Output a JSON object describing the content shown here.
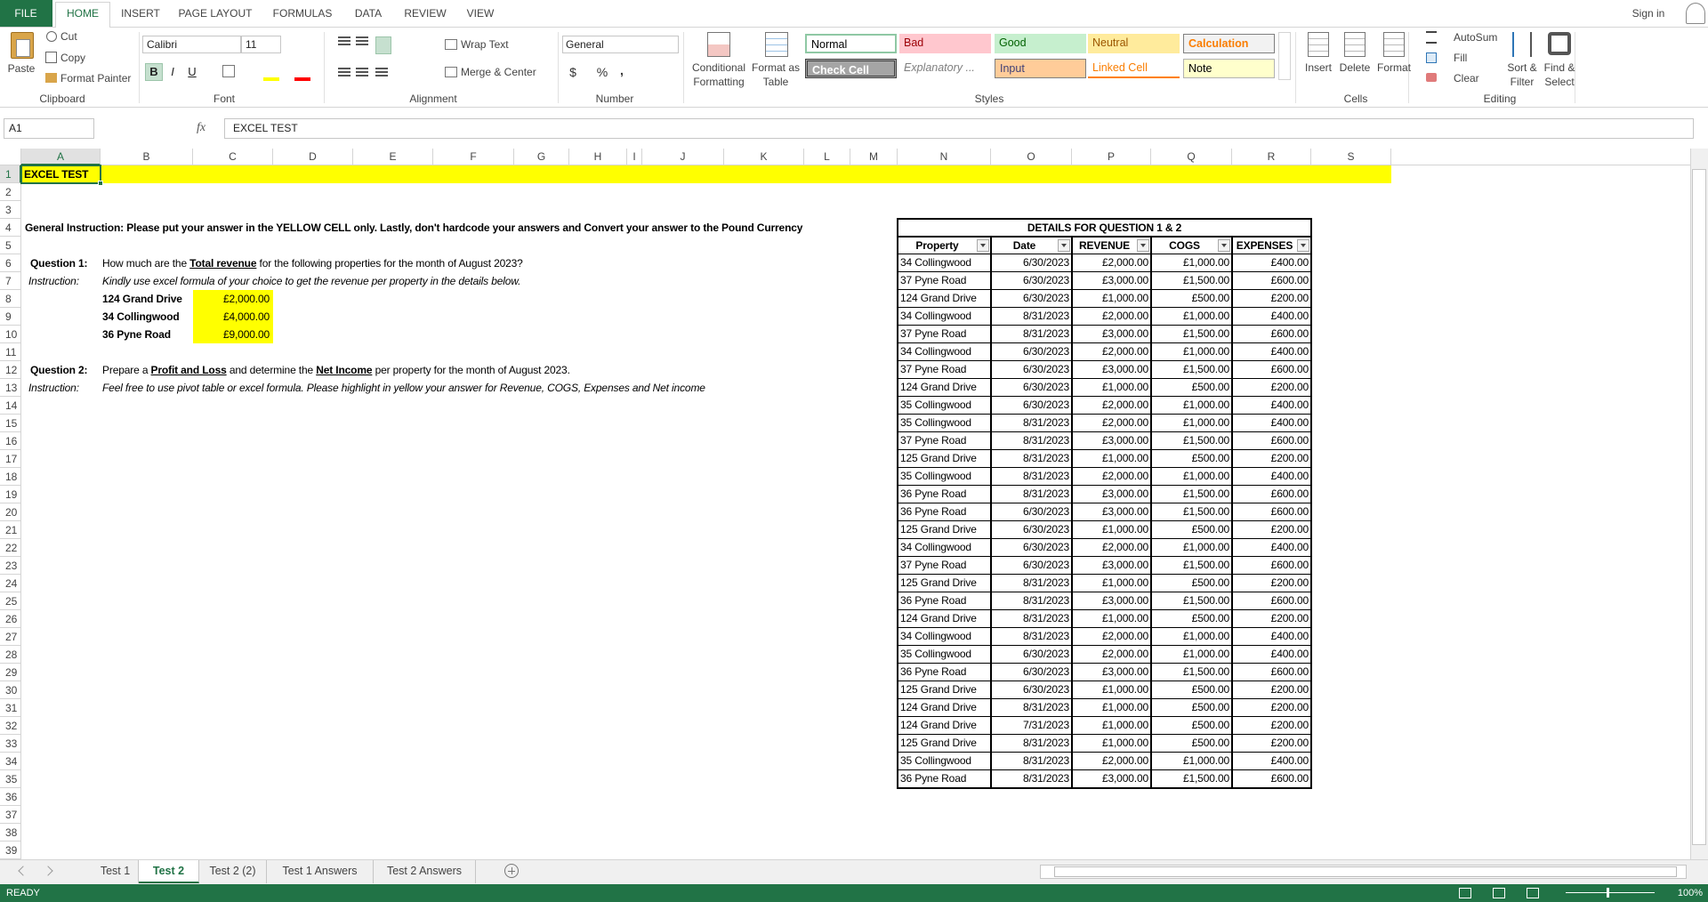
{
  "ribbon": {
    "tabs": [
      "FILE",
      "HOME",
      "INSERT",
      "PAGE LAYOUT",
      "FORMULAS",
      "DATA",
      "REVIEW",
      "VIEW"
    ],
    "sign_in": "Sign in",
    "clipboard": {
      "paste": "Paste",
      "cut": "Cut",
      "copy": "Copy",
      "format_painter": "Format Painter",
      "label": "Clipboard"
    },
    "font": {
      "name": "Calibri",
      "size": "11",
      "bold": "B",
      "italic": "I",
      "underline": "U",
      "label": "Font"
    },
    "alignment": {
      "wrap_text": "Wrap Text",
      "merge_center": "Merge & Center",
      "label": "Alignment"
    },
    "number": {
      "format": "General",
      "currency": "$",
      "percent": "%",
      "comma": ",",
      "label": "Number"
    },
    "styles": {
      "conditional_formatting": [
        "Conditional",
        "Formatting"
      ],
      "format_as_table": [
        "Format as",
        "Table"
      ],
      "cells": [
        [
          "Normal",
          "Bad",
          "Good",
          "Neutral",
          "Calculation"
        ],
        [
          "Check Cell",
          "Explanatory ...",
          "Input",
          "Linked Cell",
          "Note"
        ]
      ],
      "label": "Styles"
    },
    "cells": {
      "insert": "Insert",
      "delete": "Delete",
      "format": "Format",
      "label": "Cells"
    },
    "editing": {
      "autosum": "AutoSum",
      "fill": "Fill",
      "clear": "Clear",
      "sort_filter": [
        "Sort &",
        "Filter"
      ],
      "find_select": [
        "Find &",
        "Select"
      ],
      "label": "Editing"
    }
  },
  "formula_bar": {
    "name_box": "A1",
    "fx": "fx",
    "content": "EXCEL TEST"
  },
  "columns": [
    "A",
    "B",
    "C",
    "D",
    "E",
    "F",
    "G",
    "H",
    "I",
    "J",
    "K",
    "L",
    "M",
    "N",
    "O",
    "P",
    "Q",
    "R",
    "S"
  ],
  "row_numbers": [
    1,
    2,
    3,
    4,
    5,
    6,
    7,
    8,
    9,
    10,
    11,
    12,
    13,
    14,
    15,
    16,
    17,
    18,
    19,
    20,
    21,
    22,
    23,
    24,
    25,
    26,
    27,
    28,
    29,
    30,
    31,
    32,
    33,
    34,
    35,
    36,
    37,
    38,
    39
  ],
  "sheet": {
    "title": "EXCEL TEST",
    "general_instruction": "General Instruction: Please put your answer in the YELLOW CELL only. Lastly, don't hardcode your answers and Convert your answer to the Pound Currency",
    "question1": {
      "label": "Question 1:",
      "text": [
        "How much are the ",
        "Total revenue",
        " for the following properties for the month of August 2023?"
      ],
      "instruction_label": "Instruction:",
      "instruction": "Kindly use excel formula of your choice to get the revenue per property in the details below.",
      "answers": [
        [
          "124 Grand Drive",
          "£2,000.00"
        ],
        [
          "34 Collingwood",
          "£4,000.00"
        ],
        [
          "36 Pyne Road",
          "£9,000.00"
        ]
      ]
    },
    "question2": {
      "label": "Question 2:",
      "text": [
        "Prepare a ",
        "Profit and Loss",
        " and determine the ",
        "Net Income",
        " per property for the month of August 2023."
      ],
      "instruction_label": "Instruction:",
      "instruction": "Feel free to use pivot table or excel formula. Please highlight in yellow your answer for Revenue, COGS, Expenses and Net income"
    },
    "details": {
      "title": "DETAILS FOR QUESTION 1 & 2",
      "headers": [
        "Property",
        "Date",
        "REVENUE",
        "COGS",
        "EXPENSES"
      ],
      "rows": [
        [
          "34 Collingwood",
          "6/30/2023",
          "£2,000.00",
          "£1,000.00",
          "£400.00"
        ],
        [
          "37 Pyne Road",
          "6/30/2023",
          "£3,000.00",
          "£1,500.00",
          "£600.00"
        ],
        [
          "124 Grand Drive",
          "6/30/2023",
          "£1,000.00",
          "£500.00",
          "£200.00"
        ],
        [
          "34 Collingwood",
          "8/31/2023",
          "£2,000.00",
          "£1,000.00",
          "£400.00"
        ],
        [
          "37 Pyne Road",
          "8/31/2023",
          "£3,000.00",
          "£1,500.00",
          "£600.00"
        ],
        [
          "34 Collingwood",
          "6/30/2023",
          "£2,000.00",
          "£1,000.00",
          "£400.00"
        ],
        [
          "37 Pyne Road",
          "6/30/2023",
          "£3,000.00",
          "£1,500.00",
          "£600.00"
        ],
        [
          "124 Grand Drive",
          "6/30/2023",
          "£1,000.00",
          "£500.00",
          "£200.00"
        ],
        [
          "35 Collingwood",
          "6/30/2023",
          "£2,000.00",
          "£1,000.00",
          "£400.00"
        ],
        [
          "35 Collingwood",
          "8/31/2023",
          "£2,000.00",
          "£1,000.00",
          "£400.00"
        ],
        [
          "37 Pyne Road",
          "8/31/2023",
          "£3,000.00",
          "£1,500.00",
          "£600.00"
        ],
        [
          "125 Grand Drive",
          "8/31/2023",
          "£1,000.00",
          "£500.00",
          "£200.00"
        ],
        [
          "35 Collingwood",
          "8/31/2023",
          "£2,000.00",
          "£1,000.00",
          "£400.00"
        ],
        [
          "36 Pyne Road",
          "8/31/2023",
          "£3,000.00",
          "£1,500.00",
          "£600.00"
        ],
        [
          "36 Pyne Road",
          "6/30/2023",
          "£3,000.00",
          "£1,500.00",
          "£600.00"
        ],
        [
          "125 Grand Drive",
          "6/30/2023",
          "£1,000.00",
          "£500.00",
          "£200.00"
        ],
        [
          "34 Collingwood",
          "6/30/2023",
          "£2,000.00",
          "£1,000.00",
          "£400.00"
        ],
        [
          "37 Pyne Road",
          "6/30/2023",
          "£3,000.00",
          "£1,500.00",
          "£600.00"
        ],
        [
          "125 Grand Drive",
          "8/31/2023",
          "£1,000.00",
          "£500.00",
          "£200.00"
        ],
        [
          "36 Pyne Road",
          "8/31/2023",
          "£3,000.00",
          "£1,500.00",
          "£600.00"
        ],
        [
          "124 Grand Drive",
          "8/31/2023",
          "£1,000.00",
          "£500.00",
          "£200.00"
        ],
        [
          "34 Collingwood",
          "8/31/2023",
          "£2,000.00",
          "£1,000.00",
          "£400.00"
        ],
        [
          "35 Collingwood",
          "6/30/2023",
          "£2,000.00",
          "£1,000.00",
          "£400.00"
        ],
        [
          "36 Pyne Road",
          "6/30/2023",
          "£3,000.00",
          "£1,500.00",
          "£600.00"
        ],
        [
          "125 Grand Drive",
          "6/30/2023",
          "£1,000.00",
          "£500.00",
          "£200.00"
        ],
        [
          "124 Grand Drive",
          "8/31/2023",
          "£1,000.00",
          "£500.00",
          "£200.00"
        ],
        [
          "124 Grand Drive",
          "7/31/2023",
          "£1,000.00",
          "£500.00",
          "£200.00"
        ],
        [
          "125 Grand Drive",
          "8/31/2023",
          "£1,000.00",
          "£500.00",
          "£200.00"
        ],
        [
          "35 Collingwood",
          "8/31/2023",
          "£2,000.00",
          "£1,000.00",
          "£400.00"
        ],
        [
          "36 Pyne Road",
          "8/31/2023",
          "£3,000.00",
          "£1,500.00",
          "£600.00"
        ]
      ]
    }
  },
  "sheet_tabs": [
    "Test 1",
    "Test 2",
    "Test 2 (2)",
    "Test 1 Answers",
    "Test 2 Answers"
  ],
  "status": {
    "state": "READY",
    "zoom": "100%"
  }
}
